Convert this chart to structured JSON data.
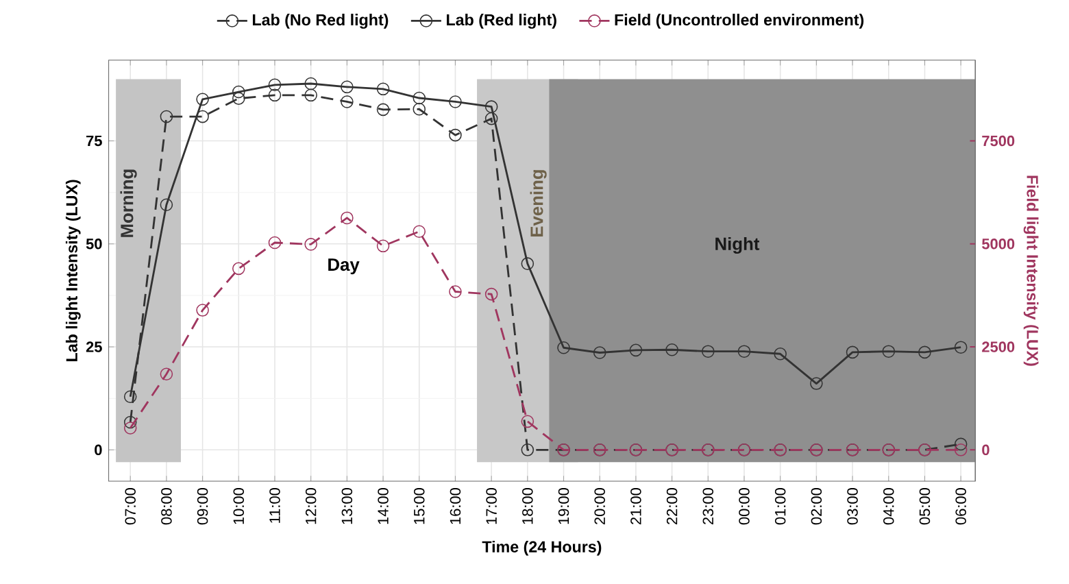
{
  "chart_data": {
    "type": "line",
    "xlabel": "Time (24 Hours)",
    "ylabel": "Lab light Intensity (LUX)",
    "y2label": "Field light Intensity (LUX)",
    "categories": [
      "07:00",
      "08:00",
      "09:00",
      "10:00",
      "11:00",
      "12:00",
      "13:00",
      "14:00",
      "15:00",
      "16:00",
      "17:00",
      "18:00",
      "19:00",
      "20:00",
      "21:00",
      "22:00",
      "23:00",
      "00:00",
      "01:00",
      "02:00",
      "03:00",
      "04:00",
      "05:00",
      "06:00"
    ],
    "series": [
      {
        "name": "Lab (No Red light)",
        "color": "#333333",
        "line_style": "dashed",
        "values": [
          6.7,
          80.9,
          80.9,
          85.3,
          86.1,
          86.1,
          84.5,
          82.6,
          82.7,
          76.4,
          80.4,
          0,
          0,
          0,
          0,
          0,
          0,
          0,
          0,
          0,
          0,
          0,
          0,
          1.4
        ]
      },
      {
        "name": "Lab (Red light)",
        "color": "#333333",
        "line_style": "solid",
        "values": [
          12.9,
          59.5,
          85.1,
          86.9,
          88.6,
          88.9,
          88.1,
          87.6,
          85.4,
          84.5,
          83.3,
          45.2,
          24.8,
          23.6,
          24.2,
          24.3,
          23.9,
          23.9,
          23.3,
          16.1,
          23.7,
          23.9,
          23.7,
          24.9
        ]
      },
      {
        "name": "Field (Uncontrolled environment)",
        "color": "#a0365f",
        "line_style": "dashed",
        "axis": "y2",
        "values": [
          530,
          1840,
          3390,
          4400,
          5030,
          4990,
          5630,
          4950,
          5300,
          3840,
          3780,
          690,
          0,
          0,
          0,
          0,
          0,
          0,
          0,
          0,
          0,
          0,
          0,
          0
        ]
      }
    ],
    "ylim": [
      -7.6,
      94.6
    ],
    "yticks": [
      0,
      25,
      50,
      75
    ],
    "y2lim": [
      -760,
      9460
    ],
    "y2ticks": [
      0,
      2500,
      5000,
      7500
    ],
    "grid": true,
    "legend": "top",
    "marker": "circle",
    "bands": [
      {
        "axis": "x",
        "from": "07:00",
        "to": "08:00",
        "label": "Morning",
        "color": "#c4c4c4"
      },
      {
        "axis": "x",
        "from": "17:00",
        "to": "19:00",
        "label": "Evening",
        "color": "#c8c8c8"
      },
      {
        "axis": "x",
        "from": "19:00",
        "to": "06:00",
        "label": "Night",
        "color": "#8f8f8f"
      }
    ],
    "annotations": [
      "Day"
    ]
  }
}
